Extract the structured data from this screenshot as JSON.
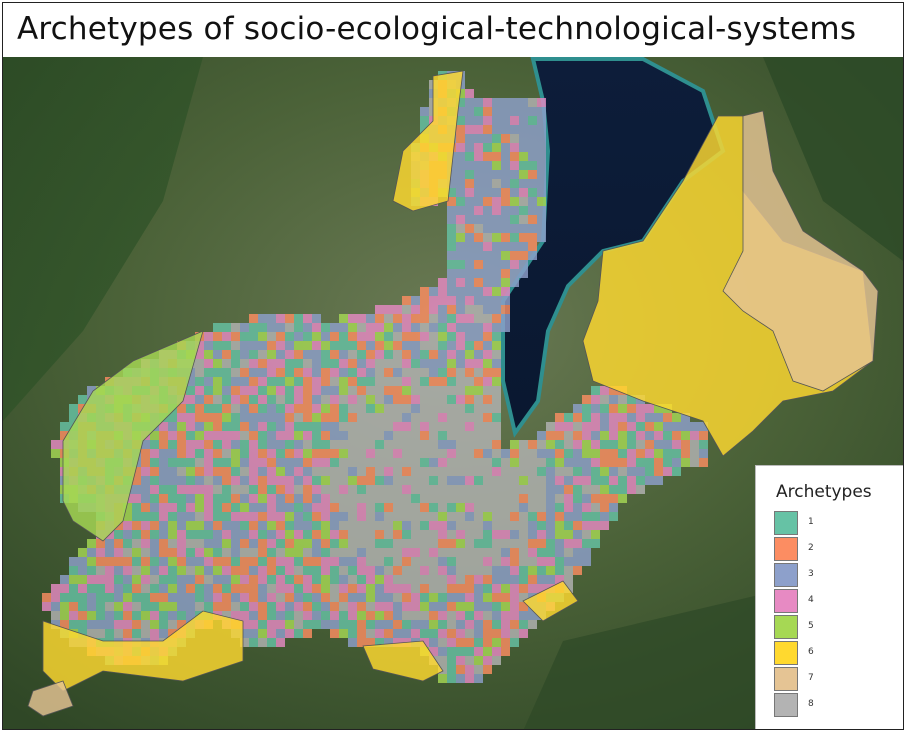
{
  "title": "Archetypes of socio-ecological-technological-systems",
  "legend": {
    "title": "Archetypes",
    "items": [
      {
        "label": "1",
        "color": "#66c2a5"
      },
      {
        "label": "2",
        "color": "#fc8d62"
      },
      {
        "label": "3",
        "color": "#8da0cb"
      },
      {
        "label": "4",
        "color": "#e78ac3"
      },
      {
        "label": "5",
        "color": "#a6d854"
      },
      {
        "label": "6",
        "color": "#ffd92f"
      },
      {
        "label": "7",
        "color": "#e5c494"
      },
      {
        "label": "8",
        "color": "#b3b3b3"
      }
    ]
  },
  "basemap": {
    "type": "satellite imagery",
    "water_color": "#0b1a33",
    "land_color": "#3f5a34"
  }
}
